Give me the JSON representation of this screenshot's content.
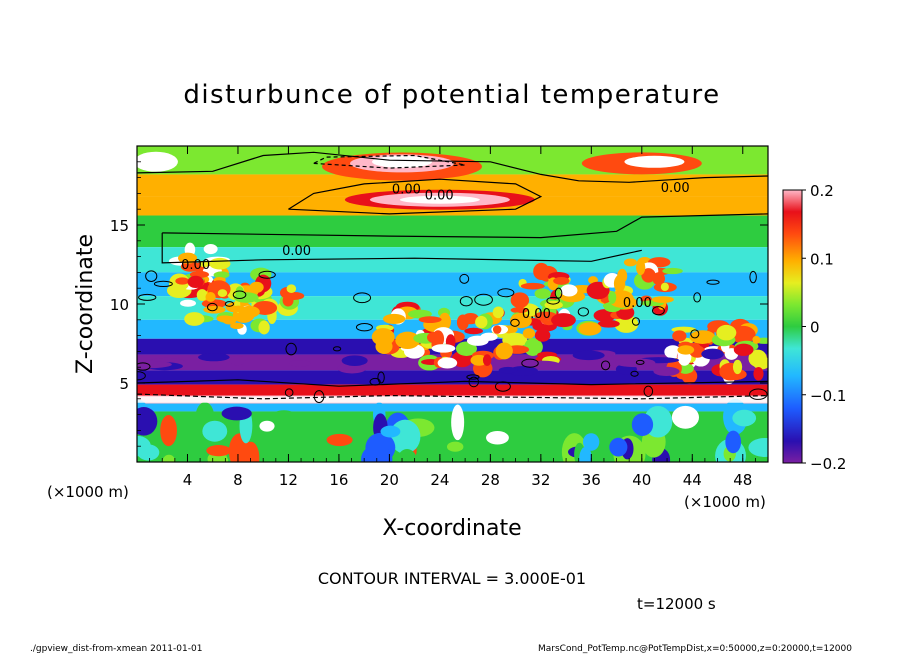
{
  "chart_data": {
    "type": "heatmap",
    "title": "disturbunce of potential temperature",
    "xlabel": "X-coordinate",
    "ylabel": "Z-coordinate",
    "x_unit": "(×1000 m)",
    "z_unit": "(×1000 m)",
    "x_ticks": [
      4,
      8,
      12,
      16,
      20,
      24,
      28,
      32,
      36,
      40,
      44,
      48
    ],
    "z_ticks": [
      5,
      10,
      15
    ],
    "xlim": [
      0,
      50
    ],
    "zlim": [
      0,
      20
    ],
    "colorbar": {
      "ticks": [
        "0.2",
        "0.1",
        "0",
        "−0.1",
        "−0.2"
      ],
      "values": [
        0.2,
        0.1,
        0,
        -0.1,
        -0.2
      ],
      "range": [
        -0.2,
        0.2
      ]
    },
    "contour_labels": [
      "0.00",
      "0.00",
      "0.00",
      "0.00",
      "0.00",
      "0.00",
      "0.00"
    ],
    "contour_interval_text": "CONTOUR INTERVAL = 3.000E-01",
    "time_text": "t=12000 s",
    "bands": [
      {
        "z0": 18.2,
        "z1": 20.0,
        "value": 0.05
      },
      {
        "z0": 16.8,
        "z1": 18.2,
        "value": 0.12
      },
      {
        "z0": 15.6,
        "z1": 16.8,
        "value": 0.1
      },
      {
        "z0": 13.6,
        "z1": 15.6,
        "value": 0.0
      },
      {
        "z0": 12.0,
        "z1": 13.6,
        "value": -0.05
      },
      {
        "z0": 10.5,
        "z1": 12.0,
        "value": -0.08
      },
      {
        "z0": 9.0,
        "z1": 10.5,
        "value": -0.07
      },
      {
        "z0": 7.8,
        "z1": 9.0,
        "value": -0.12
      },
      {
        "z0": 6.8,
        "z1": 7.8,
        "value": -0.17
      },
      {
        "z0": 5.8,
        "z1": 6.8,
        "value": -0.2
      },
      {
        "z0": 4.9,
        "z1": 5.8,
        "value": -0.16
      },
      {
        "z0": 4.2,
        "z1": 4.9,
        "value": 0.18
      },
      {
        "z0": 3.7,
        "z1": 4.2,
        "value": 0.2
      },
      {
        "z0": 3.2,
        "z1": 3.7,
        "value": -0.1
      },
      {
        "z0": 0.0,
        "z1": 3.2,
        "value": -0.02
      }
    ]
  },
  "footer": {
    "left": "./gpview_dist-from-xmean   2011-01-01",
    "right": "MarsCond_PotTemp.nc@PotTempDist,x=0:50000,z=0:20000,t=12000"
  }
}
